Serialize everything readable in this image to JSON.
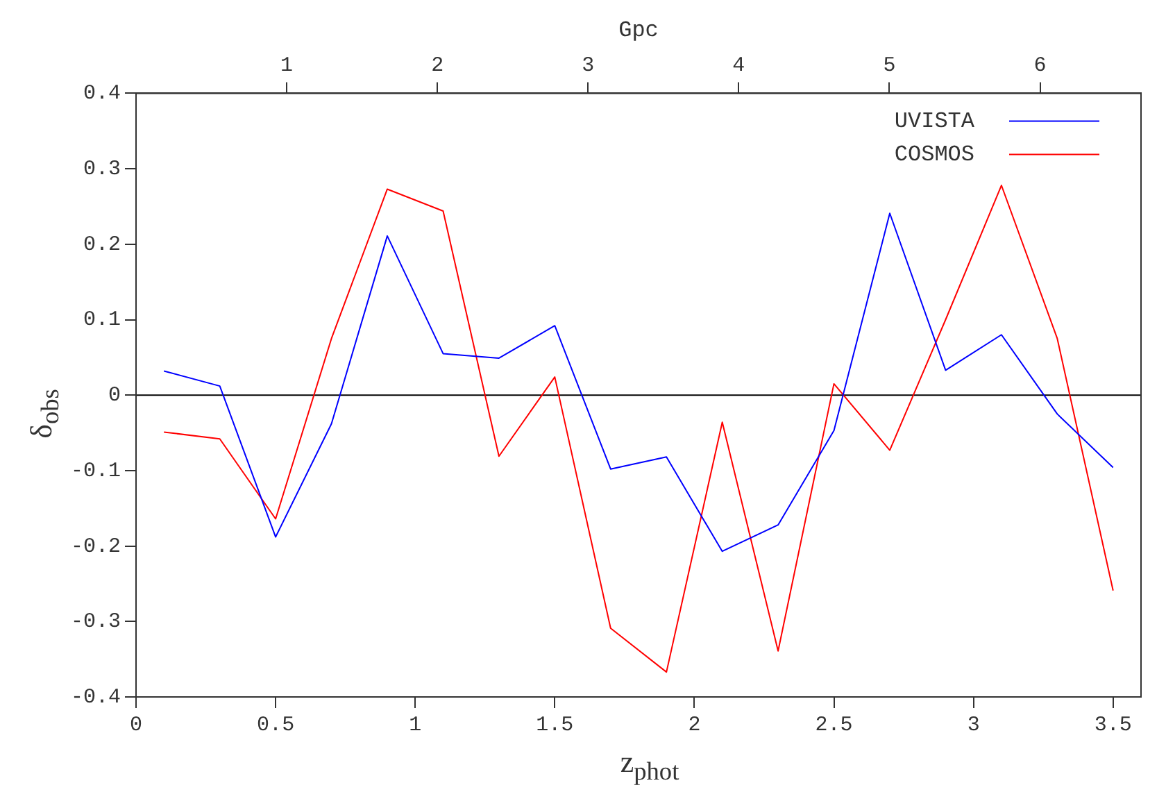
{
  "chart_data": {
    "type": "line",
    "xlabel": "z$_{phot}$",
    "ylabel": "δ$_{obs}$",
    "x2label": "Gpc",
    "x": [
      0.1,
      0.3,
      0.5,
      0.7,
      0.9,
      1.1,
      1.3,
      1.5,
      1.7,
      1.9,
      2.1,
      2.3,
      2.5,
      2.7,
      2.9,
      3.1,
      3.3,
      3.5
    ],
    "series": [
      {
        "name": "UVISTA",
        "color": "#0000ff",
        "values": [
          0.032,
          0.012,
          -0.188,
          -0.038,
          0.211,
          0.055,
          0.049,
          0.092,
          -0.098,
          -0.082,
          -0.207,
          -0.172,
          -0.047,
          0.241,
          0.033,
          0.08,
          -0.025,
          -0.096
        ]
      },
      {
        "name": "COSMOS",
        "color": "#ff0000",
        "values": [
          -0.049,
          -0.058,
          -0.164,
          0.075,
          0.273,
          0.244,
          -0.081,
          0.024,
          -0.309,
          -0.367,
          -0.036,
          -0.339,
          0.015,
          -0.073,
          0.1,
          0.278,
          0.075,
          -0.259
        ]
      }
    ],
    "xlim": [
      0,
      3.6
    ],
    "xticks": [
      0,
      0.5,
      1,
      1.5,
      2,
      2.5,
      3,
      3.5
    ],
    "ylim": [
      -0.4,
      0.4
    ],
    "yticks": [
      -0.4,
      -0.3,
      -0.2,
      -0.1,
      0,
      0.1,
      0.2,
      0.3,
      0.4
    ],
    "x2lim": [
      0,
      6.67
    ],
    "x2ticks": [
      1,
      2,
      3,
      4,
      5,
      6
    ],
    "ref_lines": [
      {
        "axis": "y",
        "value": 0,
        "color": "#000000"
      }
    ],
    "legend": "top right",
    "grid": false,
    "marker": "none",
    "line_style": "solid"
  }
}
